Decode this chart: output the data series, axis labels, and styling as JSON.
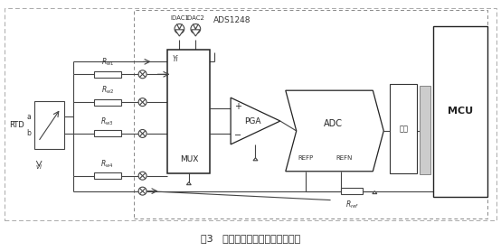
{
  "title": "图3   四线制热电阻测量原理示意图",
  "title_fontsize": 8,
  "bg_color": "#ffffff",
  "fig_width": 5.54,
  "fig_height": 2.78,
  "dpi": 100,
  "ads_label": "ADS1248",
  "mux_label": "MUX",
  "pga_label": "PGA",
  "adc_label": "ADC",
  "other_label": "其他",
  "mcu_label": "MCU",
  "idac_label1": "IDAC1",
  "idac_label2": "IDAC2",
  "refp_label": "REFP",
  "refn_label": "REFN",
  "rtd_label": "RTD",
  "a_label": "a",
  "b_label": "b",
  "yi_label": "Yi",
  "rref_label": "R_{ref}",
  "lc": "#444444",
  "lw": 0.8
}
